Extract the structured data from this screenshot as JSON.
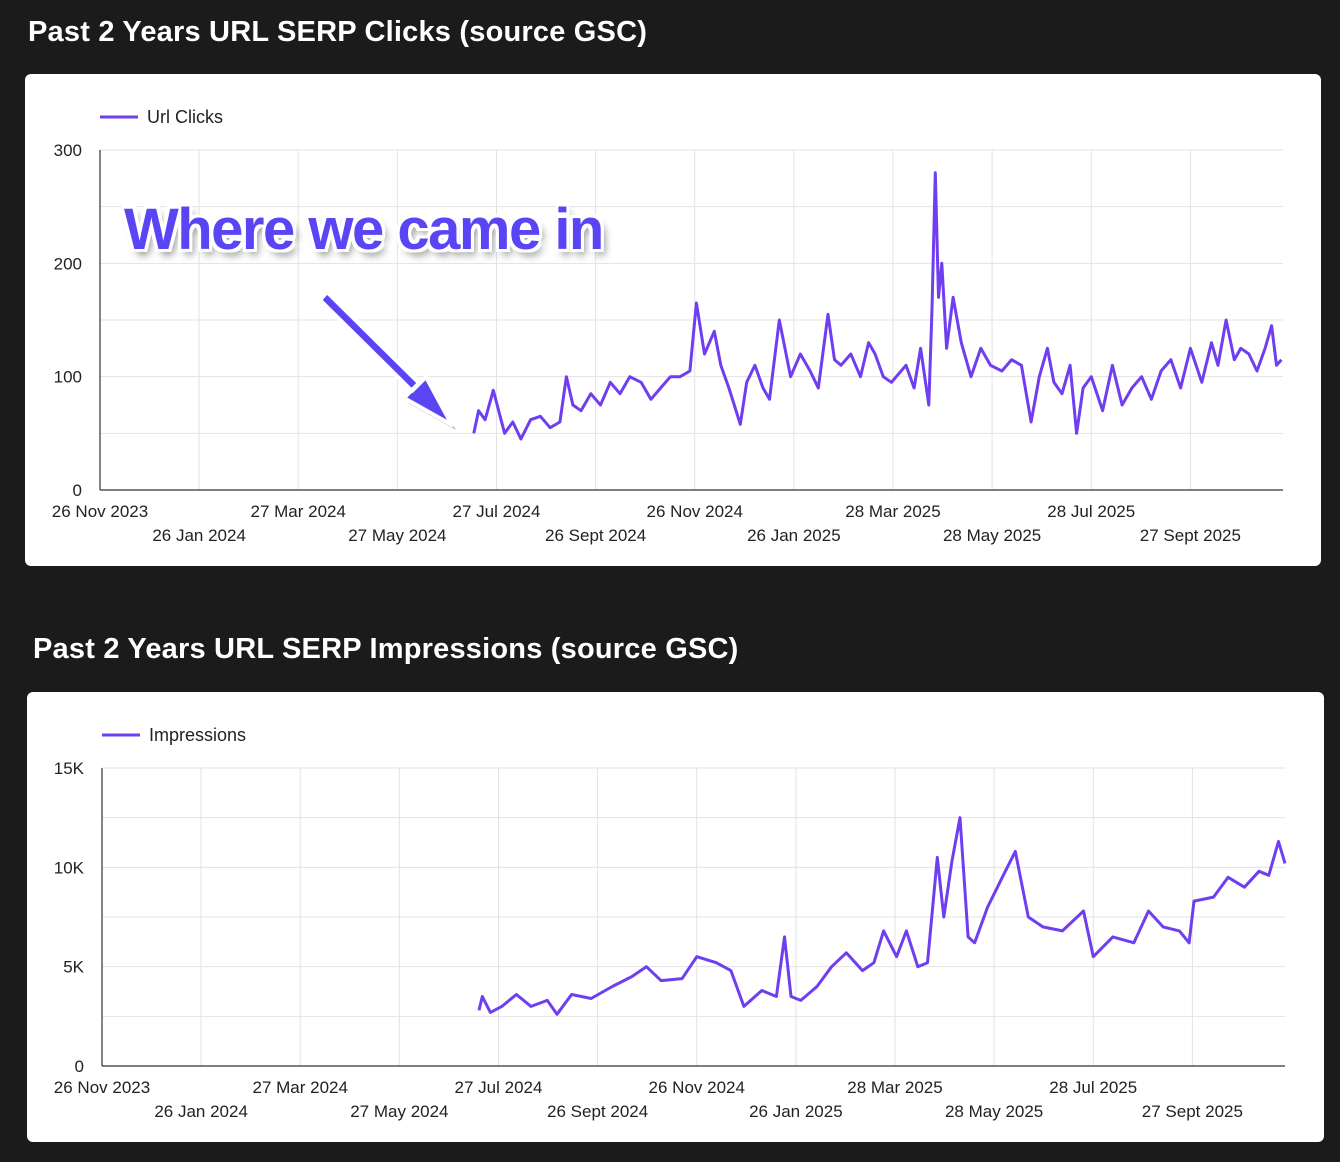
{
  "charts_titles": [
    "Past 2 Years URL SERP Clicks (source GSC)",
    "Past 2 Years URL SERP Impressions (source GSC)"
  ],
  "annotation": {
    "text": "Where we came in",
    "color": "#5a45f5"
  },
  "chart_data": [
    {
      "type": "line",
      "title": "Past 2 Years URL SERP Clicks (source GSC)",
      "legend": "top-left",
      "color": "#6f3ef0",
      "grid": true,
      "xlim": [
        "2023-11-26",
        "2025-11-23"
      ],
      "ylim": [
        0,
        300
      ],
      "yticks": [
        {
          "v": 0,
          "label": "0"
        },
        {
          "v": 100,
          "label": "100"
        },
        {
          "v": 200,
          "label": "200"
        },
        {
          "v": 300,
          "label": "300"
        }
      ],
      "xticks": [
        {
          "d": "2023-11-26",
          "label": "26 Nov 2023"
        },
        {
          "d": "2024-01-26",
          "label": "26 Jan 2024"
        },
        {
          "d": "2024-03-27",
          "label": "27 Mar 2024"
        },
        {
          "d": "2024-05-27",
          "label": "27 May 2024"
        },
        {
          "d": "2024-07-27",
          "label": "27 Jul 2024"
        },
        {
          "d": "2024-09-26",
          "label": "26 Sept 2024"
        },
        {
          "d": "2024-11-26",
          "label": "26 Nov 2024"
        },
        {
          "d": "2025-01-26",
          "label": "26 Jan 2025"
        },
        {
          "d": "2025-03-28",
          "label": "28 Mar 2025"
        },
        {
          "d": "2025-05-28",
          "label": "28 May 2025"
        },
        {
          "d": "2025-07-28",
          "label": "28 Jul 2025"
        },
        {
          "d": "2025-09-27",
          "label": "27 Sept 2025"
        }
      ],
      "series": [
        {
          "name": "Url Clicks",
          "points": [
            [
              "2024-07-13",
              50
            ],
            [
              "2024-07-16",
              70
            ],
            [
              "2024-07-20",
              62
            ],
            [
              "2024-07-25",
              88
            ],
            [
              "2024-08-01",
              50
            ],
            [
              "2024-08-06",
              60
            ],
            [
              "2024-08-11",
              45
            ],
            [
              "2024-08-17",
              62
            ],
            [
              "2024-08-23",
              65
            ],
            [
              "2024-08-29",
              55
            ],
            [
              "2024-09-04",
              60
            ],
            [
              "2024-09-08",
              100
            ],
            [
              "2024-09-12",
              75
            ],
            [
              "2024-09-17",
              70
            ],
            [
              "2024-09-23",
              85
            ],
            [
              "2024-09-29",
              75
            ],
            [
              "2024-10-05",
              95
            ],
            [
              "2024-10-11",
              85
            ],
            [
              "2024-10-17",
              100
            ],
            [
              "2024-10-24",
              95
            ],
            [
              "2024-10-30",
              80
            ],
            [
              "2024-11-05",
              90
            ],
            [
              "2024-11-11",
              100
            ],
            [
              "2024-11-17",
              100
            ],
            [
              "2024-11-23",
              105
            ],
            [
              "2024-11-27",
              165
            ],
            [
              "2024-12-02",
              120
            ],
            [
              "2024-12-08",
              140
            ],
            [
              "2024-12-12",
              110
            ],
            [
              "2024-12-17",
              90
            ],
            [
              "2024-12-24",
              58
            ],
            [
              "2024-12-28",
              95
            ],
            [
              "2025-01-02",
              110
            ],
            [
              "2025-01-07",
              90
            ],
            [
              "2025-01-11",
              80
            ],
            [
              "2025-01-17",
              150
            ],
            [
              "2025-01-24",
              100
            ],
            [
              "2025-01-30",
              120
            ],
            [
              "2025-02-05",
              105
            ],
            [
              "2025-02-10",
              90
            ],
            [
              "2025-02-16",
              155
            ],
            [
              "2025-02-20",
              115
            ],
            [
              "2025-02-24",
              110
            ],
            [
              "2025-03-02",
              120
            ],
            [
              "2025-03-08",
              100
            ],
            [
              "2025-03-13",
              130
            ],
            [
              "2025-03-17",
              120
            ],
            [
              "2025-03-22",
              100
            ],
            [
              "2025-03-27",
              95
            ],
            [
              "2025-04-05",
              110
            ],
            [
              "2025-04-10",
              90
            ],
            [
              "2025-04-14",
              125
            ],
            [
              "2025-04-19",
              75
            ],
            [
              "2025-04-21",
              160
            ],
            [
              "2025-04-23",
              280
            ],
            [
              "2025-04-25",
              170
            ],
            [
              "2025-04-27",
              200
            ],
            [
              "2025-04-30",
              125
            ],
            [
              "2025-05-04",
              170
            ],
            [
              "2025-05-09",
              130
            ],
            [
              "2025-05-15",
              100
            ],
            [
              "2025-05-21",
              125
            ],
            [
              "2025-05-27",
              110
            ],
            [
              "2025-06-03",
              105
            ],
            [
              "2025-06-09",
              115
            ],
            [
              "2025-06-15",
              110
            ],
            [
              "2025-06-21",
              60
            ],
            [
              "2025-06-26",
              100
            ],
            [
              "2025-07-01",
              125
            ],
            [
              "2025-07-05",
              95
            ],
            [
              "2025-07-10",
              85
            ],
            [
              "2025-07-15",
              110
            ],
            [
              "2025-07-19",
              50
            ],
            [
              "2025-07-23",
              90
            ],
            [
              "2025-07-28",
              100
            ],
            [
              "2025-08-04",
              70
            ],
            [
              "2025-08-10",
              110
            ],
            [
              "2025-08-16",
              75
            ],
            [
              "2025-08-22",
              90
            ],
            [
              "2025-08-28",
              100
            ],
            [
              "2025-09-03",
              80
            ],
            [
              "2025-09-09",
              105
            ],
            [
              "2025-09-15",
              115
            ],
            [
              "2025-09-21",
              90
            ],
            [
              "2025-09-27",
              125
            ],
            [
              "2025-10-04",
              95
            ],
            [
              "2025-10-10",
              130
            ],
            [
              "2025-10-14",
              110
            ],
            [
              "2025-10-19",
              150
            ],
            [
              "2025-10-24",
              115
            ],
            [
              "2025-10-28",
              125
            ],
            [
              "2025-11-02",
              120
            ],
            [
              "2025-11-07",
              105
            ],
            [
              "2025-11-12",
              125
            ],
            [
              "2025-11-16",
              145
            ],
            [
              "2025-11-19",
              110
            ],
            [
              "2025-11-22",
              115
            ]
          ]
        }
      ]
    },
    {
      "type": "line",
      "title": "Past 2 Years URL SERP Impressions (source GSC)",
      "legend": "top-left",
      "color": "#6f3ef0",
      "grid": true,
      "xlim": [
        "2023-11-26",
        "2025-11-23"
      ],
      "ylim": [
        0,
        15000
      ],
      "yticks": [
        {
          "v": 0,
          "label": "0"
        },
        {
          "v": 5000,
          "label": "5K"
        },
        {
          "v": 10000,
          "label": "10K"
        },
        {
          "v": 15000,
          "label": "15K"
        }
      ],
      "xticks": [
        {
          "d": "2023-11-26",
          "label": "26 Nov 2023"
        },
        {
          "d": "2024-01-26",
          "label": "26 Jan 2024"
        },
        {
          "d": "2024-03-27",
          "label": "27 Mar 2024"
        },
        {
          "d": "2024-05-27",
          "label": "27 May 2024"
        },
        {
          "d": "2024-07-27",
          "label": "27 Jul 2024"
        },
        {
          "d": "2024-09-26",
          "label": "26 Sept 2024"
        },
        {
          "d": "2024-11-26",
          "label": "26 Nov 2024"
        },
        {
          "d": "2025-01-26",
          "label": "26 Jan 2025"
        },
        {
          "d": "2025-03-28",
          "label": "28 Mar 2025"
        },
        {
          "d": "2025-05-28",
          "label": "28 May 2025"
        },
        {
          "d": "2025-07-28",
          "label": "28 Jul 2025"
        },
        {
          "d": "2025-09-27",
          "label": "27 Sept 2025"
        }
      ],
      "series": [
        {
          "name": "Impressions",
          "points": [
            [
              "2024-07-15",
              2800
            ],
            [
              "2024-07-17",
              3500
            ],
            [
              "2024-07-22",
              2700
            ],
            [
              "2024-07-29",
              3000
            ],
            [
              "2024-08-07",
              3600
            ],
            [
              "2024-08-16",
              3000
            ],
            [
              "2024-08-26",
              3300
            ],
            [
              "2024-09-01",
              2600
            ],
            [
              "2024-09-10",
              3600
            ],
            [
              "2024-09-22",
              3400
            ],
            [
              "2024-10-05",
              4000
            ],
            [
              "2024-10-17",
              4500
            ],
            [
              "2024-10-26",
              5000
            ],
            [
              "2024-11-04",
              4300
            ],
            [
              "2024-11-17",
              4400
            ],
            [
              "2024-11-26",
              5500
            ],
            [
              "2024-12-08",
              5200
            ],
            [
              "2024-12-17",
              4800
            ],
            [
              "2024-12-25",
              3000
            ],
            [
              "2025-01-05",
              3800
            ],
            [
              "2025-01-14",
              3500
            ],
            [
              "2025-01-19",
              6500
            ],
            [
              "2025-01-23",
              3500
            ],
            [
              "2025-01-29",
              3300
            ],
            [
              "2025-02-08",
              4000
            ],
            [
              "2025-02-17",
              5000
            ],
            [
              "2025-02-26",
              5700
            ],
            [
              "2025-03-08",
              4800
            ],
            [
              "2025-03-15",
              5200
            ],
            [
              "2025-03-21",
              6800
            ],
            [
              "2025-03-29",
              5500
            ],
            [
              "2025-04-04",
              6800
            ],
            [
              "2025-04-11",
              5000
            ],
            [
              "2025-04-17",
              5200
            ],
            [
              "2025-04-23",
              10500
            ],
            [
              "2025-04-27",
              7500
            ],
            [
              "2025-05-02",
              10300
            ],
            [
              "2025-05-07",
              12500
            ],
            [
              "2025-05-12",
              6500
            ],
            [
              "2025-05-16",
              6200
            ],
            [
              "2025-05-24",
              8000
            ],
            [
              "2025-06-02",
              9500
            ],
            [
              "2025-06-10",
              10800
            ],
            [
              "2025-06-18",
              7500
            ],
            [
              "2025-06-27",
              7000
            ],
            [
              "2025-07-09",
              6800
            ],
            [
              "2025-07-22",
              7800
            ],
            [
              "2025-07-28",
              5500
            ],
            [
              "2025-08-09",
              6500
            ],
            [
              "2025-08-22",
              6200
            ],
            [
              "2025-08-31",
              7800
            ],
            [
              "2025-09-09",
              7000
            ],
            [
              "2025-09-19",
              6800
            ],
            [
              "2025-09-25",
              6200
            ],
            [
              "2025-09-28",
              8300
            ],
            [
              "2025-10-10",
              8500
            ],
            [
              "2025-10-19",
              9500
            ],
            [
              "2025-10-29",
              9000
            ],
            [
              "2025-11-07",
              9800
            ],
            [
              "2025-11-13",
              9600
            ],
            [
              "2025-11-19",
              11300
            ],
            [
              "2025-11-23",
              10200
            ]
          ]
        }
      ]
    }
  ]
}
